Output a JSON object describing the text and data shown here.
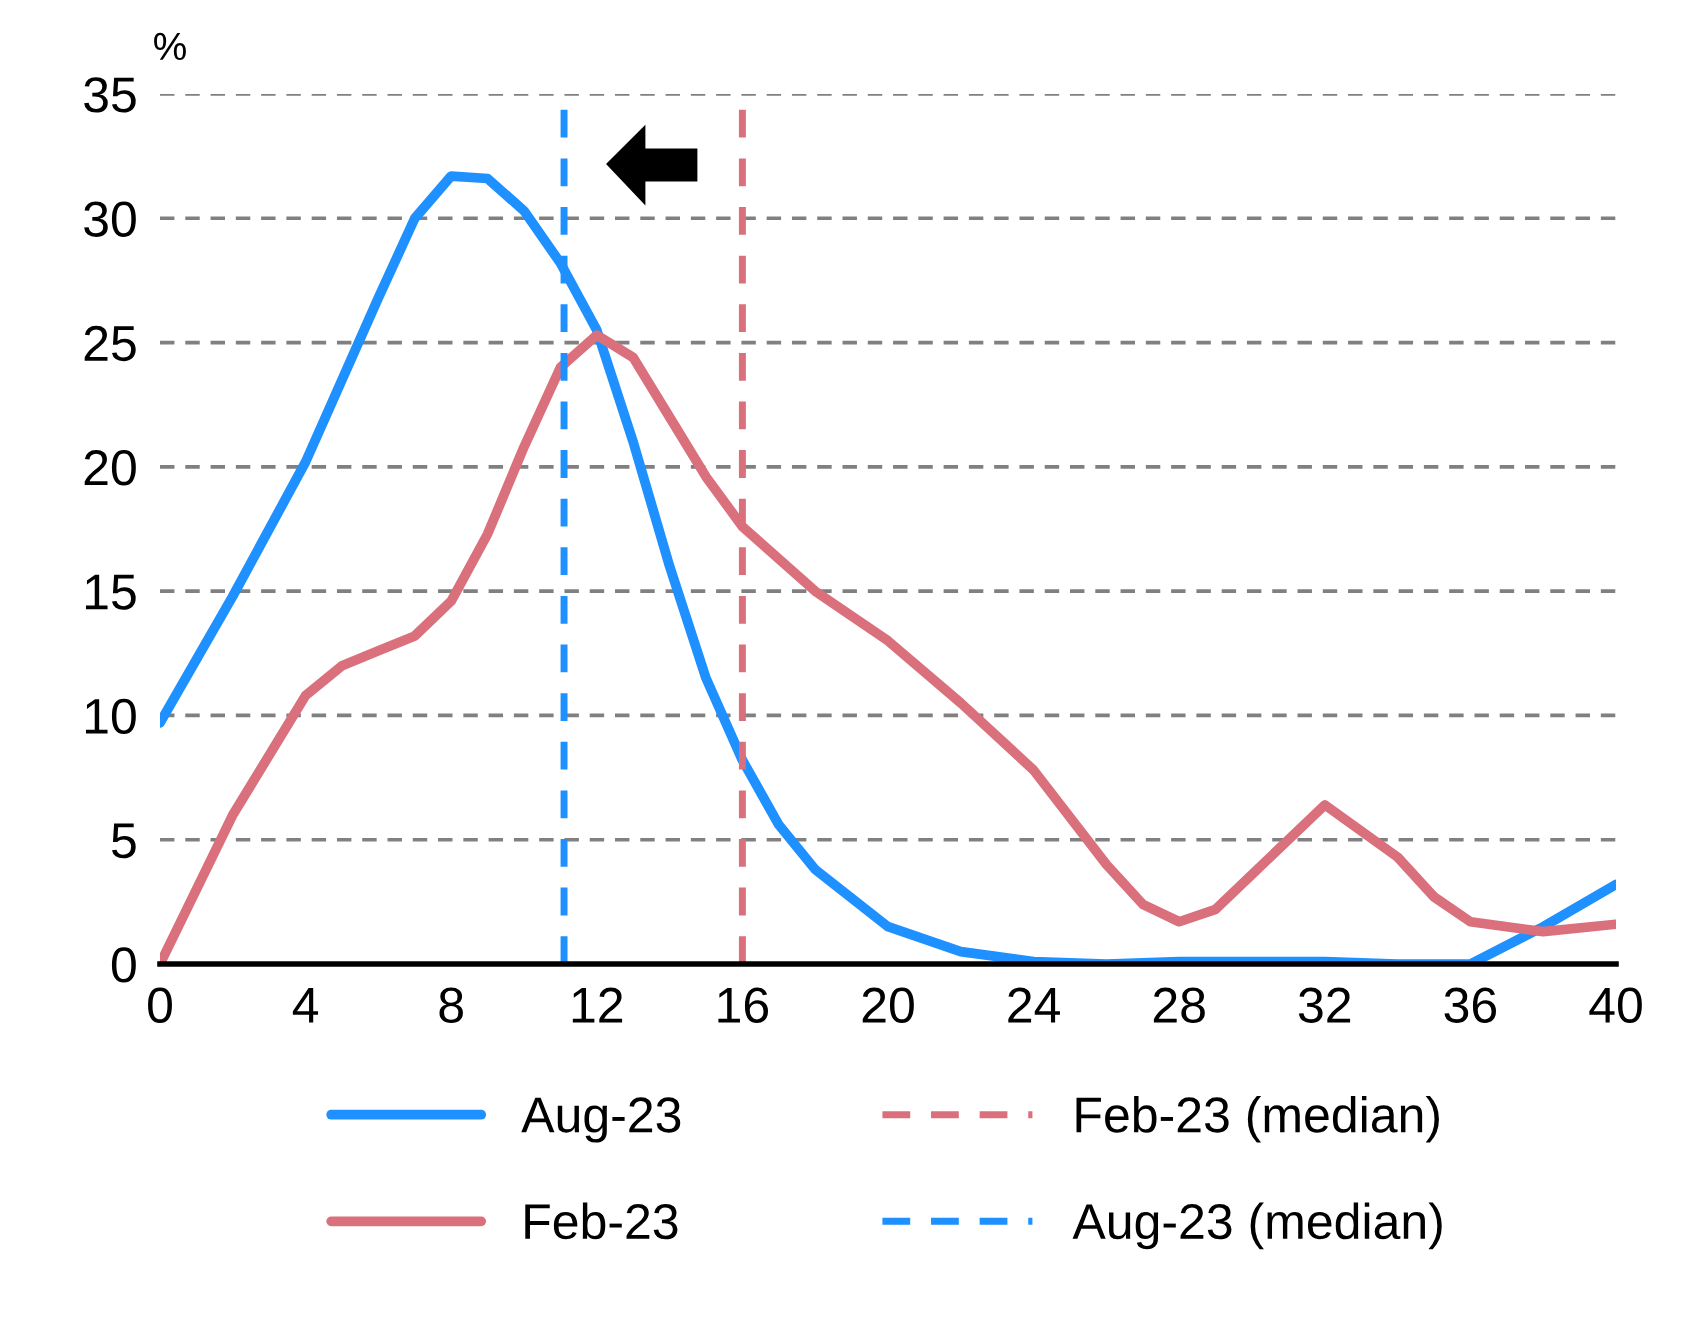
{
  "chart_data": {
    "type": "line",
    "ylabel": "%",
    "series": [
      {
        "name": "Aug-23",
        "color": "#1e90ff",
        "x": [
          0,
          2,
          4,
          6,
          7,
          8,
          9,
          10,
          11,
          12,
          13,
          14,
          15,
          16,
          17,
          18,
          20,
          22,
          24,
          26,
          28,
          30,
          32,
          34,
          36,
          38,
          40
        ],
        "values": [
          9.7,
          14.8,
          20.2,
          26.8,
          30,
          31.7,
          31.6,
          30.3,
          28.2,
          25.5,
          21,
          16,
          11.5,
          8.2,
          5.6,
          3.8,
          1.5,
          0.5,
          0.1,
          0,
          0.1,
          0.1,
          0.1,
          0,
          0,
          1.5,
          3.2
        ]
      },
      {
        "name": "Feb-23",
        "color": "#d9707c",
        "x": [
          0,
          2,
          4,
          5,
          6,
          7,
          8,
          9,
          10,
          11,
          12,
          13,
          14,
          15,
          16,
          18,
          20,
          22,
          24,
          26,
          27,
          28,
          29,
          30,
          32,
          34,
          35,
          36,
          38,
          40
        ],
        "values": [
          0,
          6,
          10.8,
          12,
          12.6,
          13.2,
          14.6,
          17.3,
          20.8,
          24,
          25.3,
          24.4,
          22,
          19.6,
          17.6,
          15,
          13,
          10.5,
          7.8,
          4,
          2.4,
          1.7,
          2.2,
          3.6,
          6.4,
          4.3,
          2.7,
          1.7,
          1.3,
          1.6
        ]
      }
    ],
    "ref_lines": [
      {
        "axis": "x",
        "value": 16,
        "label": "Feb-23 (median)",
        "color": "#d9707c",
        "line_style": "dashed"
      },
      {
        "axis": "x",
        "value": 11.1,
        "label": "Aug-23 (median)",
        "color": "#1e90ff",
        "line_style": "dashed"
      }
    ],
    "xlim": [
      0,
      40
    ],
    "xticks": [
      0,
      4,
      8,
      12,
      16,
      20,
      24,
      28,
      32,
      36,
      40
    ],
    "ylim": [
      0,
      35
    ],
    "yticks": [
      0,
      5,
      10,
      15,
      20,
      25,
      30,
      35
    ],
    "grid": "y",
    "legend": "bottom",
    "marker": "none",
    "line_style": "solid"
  }
}
